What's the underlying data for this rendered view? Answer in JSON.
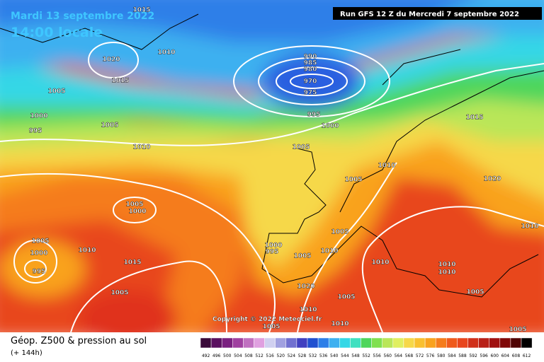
{
  "header": {
    "valid_date": "Mardi 13 septembre 2022",
    "local_time": "14:00 locale",
    "run": "Run GFS 12 Z du Mercredi 7 septembre 2022"
  },
  "copyright": "Copyright © 2022 Meteociel.fr",
  "footer": {
    "title": "Géop. Z500 & pression au sol",
    "lead": "(+ 144h)"
  },
  "scale": [
    492,
    496,
    500,
    504,
    508,
    512,
    516,
    520,
    524,
    528,
    532,
    536,
    540,
    544,
    548,
    552,
    556,
    560,
    564,
    568,
    572,
    576,
    580,
    584,
    588,
    592,
    596,
    600,
    604,
    608,
    612
  ],
  "isobar_labels": [
    1015,
    1020,
    1010,
    1005,
    1015,
    1000,
    995,
    1005,
    1010,
    990,
    985,
    980,
    970,
    975,
    995,
    1000,
    1005,
    1015,
    1010,
    1005,
    1020,
    1010,
    1005,
    1000,
    1005,
    1000,
    1010,
    995,
    1015,
    1000,
    995,
    1005,
    1010,
    1005,
    1010,
    1010,
    1010,
    1020,
    1005,
    1005,
    1010,
    1005,
    1010,
    1005,
    1005
  ]
}
